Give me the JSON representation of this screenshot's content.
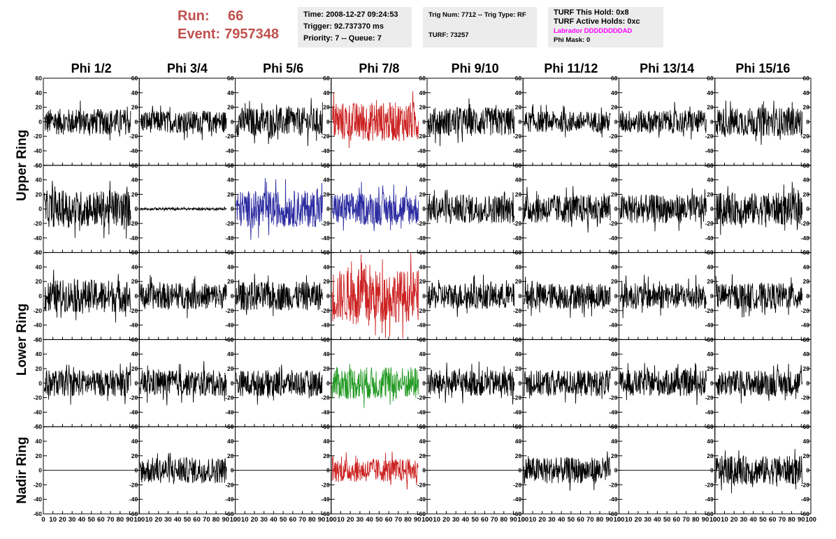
{
  "header": {
    "run_label": "Run:",
    "run_value": "66",
    "event_label": "Event:",
    "event_value": "7957348",
    "time": "Time: 2008-12-27 09:24:53",
    "trigger": "Trigger: 92.737370 ms",
    "priority": "Priority: 7 -- Queue: 7",
    "trig_num": "Trig Num: 7712 -- Trig Type: RF",
    "turf": "TURF: 73257",
    "turf_this_hold": "TURF This Hold: 0x8",
    "turf_active_holds": "TURF Active Holds: 0xc",
    "labrador": "Labrador DDDDDDDDAD",
    "phi_mask": "Phi Mask: 0"
  },
  "colors": {
    "header_red": "#c0504d",
    "trace_black": "#000000",
    "trace_red": "#cc2222",
    "trace_blue": "#2a2aa0",
    "trace_green": "#229922",
    "labrador_magenta": "#ff00ff"
  },
  "chart_data": {
    "type": "line",
    "columns": [
      "Phi 1/2",
      "Phi 3/4",
      "Phi 5/6",
      "Phi 7/8",
      "Phi 9/10",
      "Phi 11/12",
      "Phi 13/14",
      "Phi 15/16"
    ],
    "rows": [
      "Upper Ring",
      "Upper Ring",
      "Lower Ring",
      "Lower Ring",
      "Nadir Ring"
    ],
    "row_labels": [
      "Upper Ring",
      "Lower Ring",
      "Nadir Ring"
    ],
    "xlim": [
      0,
      100
    ],
    "ylim": [
      -60,
      60
    ],
    "xticks": [
      0,
      10,
      20,
      30,
      40,
      50,
      60,
      70,
      80,
      90,
      100
    ],
    "yticks": [
      -60,
      -40,
      -20,
      0,
      20,
      40,
      60
    ],
    "x_tick_labels": [
      "0",
      "10",
      "20",
      "30",
      "40",
      "50",
      "60",
      "70",
      "80",
      "90",
      "100"
    ],
    "y_tick_labels": [
      "-60",
      "-40",
      "-20",
      "0",
      "20",
      "40",
      "60"
    ],
    "panel_styles": [
      [
        "black",
        "black",
        "black",
        "red",
        "black",
        "black",
        "black",
        "black"
      ],
      [
        "black",
        "black",
        "blue",
        "blue",
        "black",
        "black",
        "black",
        "black"
      ],
      [
        "black",
        "black",
        "black",
        "red",
        "black",
        "black",
        "black",
        "black"
      ],
      [
        "black",
        "black",
        "black",
        "green",
        "black",
        "black",
        "black",
        "black"
      ],
      [
        "black",
        "black",
        "black",
        "red",
        "black",
        "black",
        "black",
        "black"
      ]
    ],
    "panel_amplitude": [
      [
        20,
        17,
        22,
        30,
        22,
        16,
        18,
        22
      ],
      [
        28,
        2,
        28,
        25,
        22,
        22,
        22,
        25
      ],
      [
        25,
        20,
        22,
        40,
        20,
        20,
        20,
        20
      ],
      [
        20,
        20,
        20,
        25,
        20,
        20,
        20,
        20
      ],
      [
        0,
        20,
        0,
        18,
        0,
        20,
        0,
        22
      ]
    ],
    "note_nadir_flat": "Nadir Ring Phi 1/2, 5/6, 9/10, 13/14 show flat zero traces"
  }
}
